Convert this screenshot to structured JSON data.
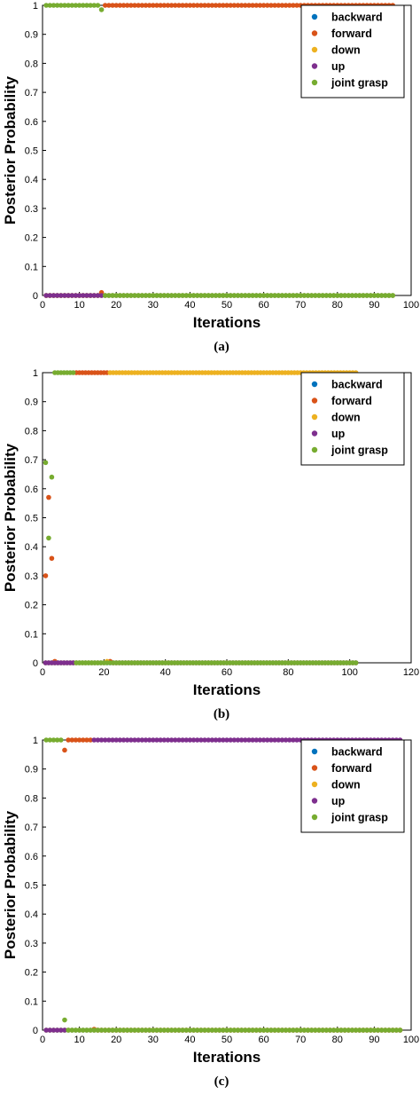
{
  "legend_entries": [
    {
      "name": "backward",
      "color": "#0072BD"
    },
    {
      "name": "forward",
      "color": "#D95319"
    },
    {
      "name": "down",
      "color": "#EDB120"
    },
    {
      "name": "up",
      "color": "#7E2F8E"
    },
    {
      "name": "joint grasp",
      "color": "#77AC30"
    }
  ],
  "chart_data": [
    {
      "type": "scatter",
      "caption": "(a)",
      "xlabel": "Iterations",
      "ylabel": "Posterior Probability",
      "xlim": [
        0,
        100
      ],
      "ylim": [
        0,
        1
      ],
      "xticks": [
        0,
        10,
        20,
        30,
        40,
        50,
        60,
        70,
        80,
        90,
        100
      ],
      "yticks": [
        0,
        0.1,
        0.2,
        0.3,
        0.4,
        0.5,
        0.6,
        0.7,
        0.8,
        0.9,
        1
      ],
      "grid": false,
      "legend_position": "top-right",
      "series": [
        {
          "name": "backward",
          "color": "#0072BD",
          "segments": [
            {
              "x0": 1,
              "x1": 95,
              "y": 0
            }
          ]
        },
        {
          "name": "forward",
          "color": "#D95319",
          "segments": [
            {
              "x0": 1,
              "x1": 15,
              "y": 0
            },
            {
              "x0": 17,
              "x1": 95,
              "y": 1
            }
          ],
          "points": [
            [
              16,
              0.01
            ]
          ]
        },
        {
          "name": "down",
          "color": "#EDB120",
          "segments": [
            {
              "x0": 1,
              "x1": 95,
              "y": 0
            }
          ]
        },
        {
          "name": "up",
          "color": "#7E2F8E",
          "segments": [
            {
              "x0": 1,
              "x1": 16,
              "y": 0
            }
          ]
        },
        {
          "name": "joint grasp",
          "color": "#77AC30",
          "segments": [
            {
              "x0": 1,
              "x1": 15,
              "y": 1
            },
            {
              "x0": 17,
              "x1": 95,
              "y": 0
            }
          ],
          "points": [
            [
              16,
              0.985
            ]
          ]
        }
      ]
    },
    {
      "type": "scatter",
      "caption": "(b)",
      "xlabel": "Iterations",
      "ylabel": "Posterior Probability",
      "xlim": [
        0,
        120
      ],
      "ylim": [
        0,
        1
      ],
      "xticks": [
        0,
        20,
        40,
        60,
        80,
        100,
        120
      ],
      "yticks": [
        0,
        0.1,
        0.2,
        0.3,
        0.4,
        0.5,
        0.6,
        0.7,
        0.8,
        0.9,
        1
      ],
      "grid": false,
      "legend_position": "top-right",
      "series": [
        {
          "name": "backward",
          "color": "#0072BD",
          "segments": [
            {
              "x0": 1,
              "x1": 102,
              "y": 0
            }
          ]
        },
        {
          "name": "forward",
          "color": "#D95319",
          "segments": [
            {
              "x0": 11,
              "x1": 20,
              "y": 1
            },
            {
              "x0": 23,
              "x1": 102,
              "y": 0
            }
          ],
          "points": [
            [
              1,
              0.3
            ],
            [
              2,
              0.57
            ],
            [
              3,
              0.36
            ],
            [
              4,
              0.005
            ],
            [
              21,
              1
            ],
            [
              22,
              0.005
            ]
          ]
        },
        {
          "name": "down",
          "color": "#EDB120",
          "segments": [
            {
              "x0": 1,
              "x1": 20,
              "y": 0
            },
            {
              "x0": 22,
              "x1": 102,
              "y": 1
            }
          ],
          "points": [
            [
              21,
              0.005
            ]
          ]
        },
        {
          "name": "up",
          "color": "#7E2F8E",
          "segments": [
            {
              "x0": 1,
              "x1": 10,
              "y": 0
            }
          ]
        },
        {
          "name": "joint grasp",
          "color": "#77AC30",
          "segments": [
            {
              "x0": 4,
              "x1": 10,
              "y": 1
            },
            {
              "x0": 11,
              "x1": 102,
              "y": 0
            }
          ],
          "points": [
            [
              1,
              0.69
            ],
            [
              2,
              0.43
            ],
            [
              3,
              0.64
            ]
          ]
        }
      ]
    },
    {
      "type": "scatter",
      "caption": "(c)",
      "xlabel": "Iterations",
      "ylabel": "Posterior Probability",
      "xlim": [
        0,
        100
      ],
      "ylim": [
        0,
        1
      ],
      "xticks": [
        0,
        10,
        20,
        30,
        40,
        50,
        60,
        70,
        80,
        90,
        100
      ],
      "yticks": [
        0,
        0.1,
        0.2,
        0.3,
        0.4,
        0.5,
        0.6,
        0.7,
        0.8,
        0.9,
        1
      ],
      "grid": false,
      "legend_position": "top-right",
      "series": [
        {
          "name": "backward",
          "color": "#0072BD",
          "segments": [
            {
              "x0": 1,
              "x1": 97,
              "y": 0
            }
          ]
        },
        {
          "name": "forward",
          "color": "#D95319",
          "segments": [
            {
              "x0": 7,
              "x1": 13,
              "y": 1
            },
            {
              "x0": 15,
              "x1": 97,
              "y": 0
            }
          ],
          "points": [
            [
              6,
              0.965
            ],
            [
              14,
              0.003
            ]
          ]
        },
        {
          "name": "down",
          "color": "#EDB120",
          "segments": [
            {
              "x0": 1,
              "x1": 97,
              "y": 0
            }
          ]
        },
        {
          "name": "up",
          "color": "#7E2F8E",
          "segments": [
            {
              "x0": 1,
              "x1": 6,
              "y": 0
            },
            {
              "x0": 14,
              "x1": 97,
              "y": 1
            }
          ]
        },
        {
          "name": "joint grasp",
          "color": "#77AC30",
          "segments": [
            {
              "x0": 1,
              "x1": 5,
              "y": 1
            },
            {
              "x0": 7,
              "x1": 97,
              "y": 0
            }
          ],
          "points": [
            [
              6,
              0.035
            ]
          ]
        }
      ]
    }
  ]
}
